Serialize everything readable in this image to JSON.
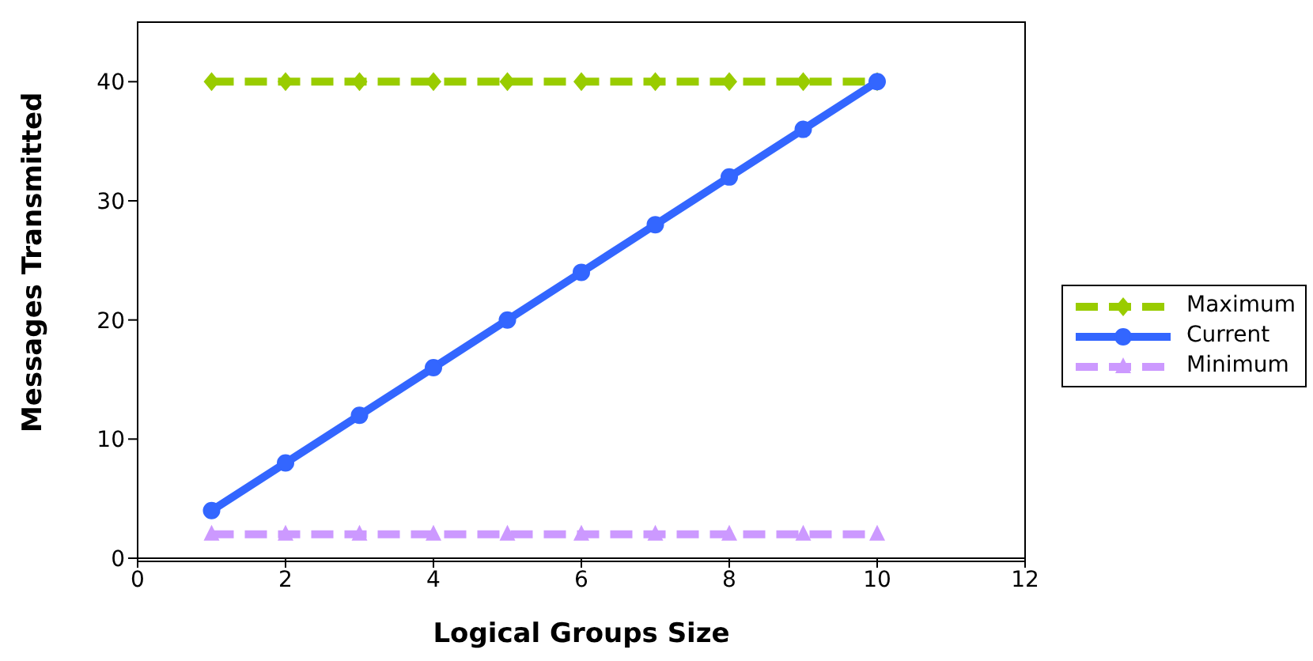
{
  "chart_data": {
    "type": "line",
    "xlabel": "Logical Groups Size",
    "ylabel": "Messages Transmitted",
    "x": [
      1,
      2,
      3,
      4,
      5,
      6,
      7,
      8,
      9,
      10
    ],
    "series": [
      {
        "name": "Maximum",
        "color": "#99cc00",
        "values": [
          40,
          40,
          40,
          40,
          40,
          40,
          40,
          40,
          40,
          40
        ],
        "marker": "diamond",
        "line_style": "dashed"
      },
      {
        "name": "Current",
        "color": "#3366ff",
        "values": [
          4,
          8,
          12,
          16,
          20,
          24,
          28,
          32,
          36,
          40
        ],
        "marker": "circle",
        "line_style": "solid"
      },
      {
        "name": "Minimum",
        "color": "#cc99ff",
        "values": [
          2,
          2,
          2,
          2,
          2,
          2,
          2,
          2,
          2,
          2
        ],
        "marker": "triangle",
        "line_style": "dashed"
      }
    ],
    "xlim": [
      0,
      12
    ],
    "xticks": [
      0,
      2,
      4,
      6,
      8,
      10,
      12
    ],
    "ylim": [
      0,
      45
    ],
    "yticks": [
      0,
      10,
      20,
      30,
      40
    ],
    "grid": false,
    "legend": "right"
  }
}
